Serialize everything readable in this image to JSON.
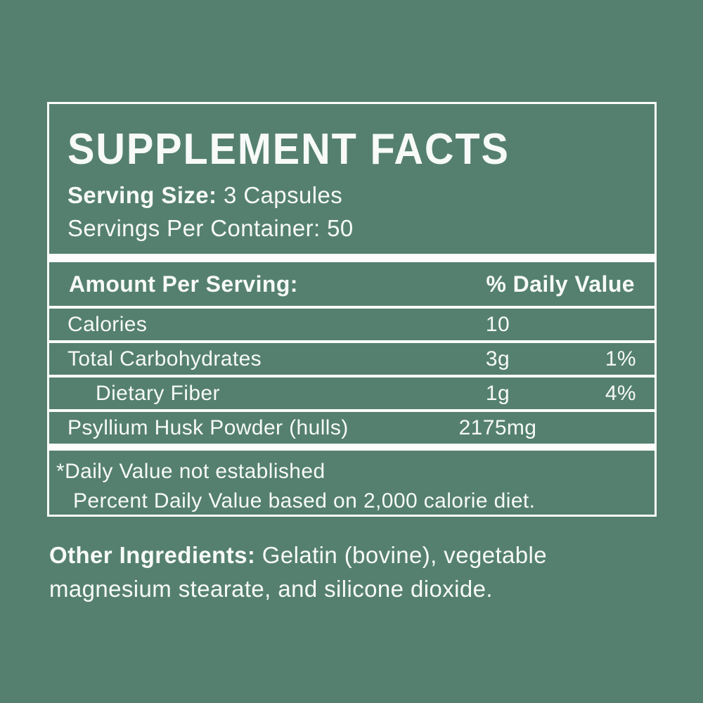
{
  "label": {
    "colors": {
      "background": "#55806F",
      "foreground": "#F7FAF8",
      "rule": "#FCFDFC"
    },
    "header": {
      "title": "SUPPLEMENT FACTS",
      "serving_size_label": "Serving Size:",
      "serving_size_value": " 3 Capsules",
      "servings_per_container": "Servings Per Container: 50"
    },
    "table": {
      "header": {
        "amount_label": "Amount Per Serving:",
        "dv_label": "% Daily Value"
      },
      "rows": [
        {
          "name": "Calories",
          "amount": "10",
          "dv": "",
          "indent": false
        },
        {
          "name": "Total Carbohydrates",
          "amount": "3g",
          "dv": "1%",
          "indent": false
        },
        {
          "name": "Dietary Fiber",
          "amount": "1g",
          "dv": "4%",
          "indent": true
        },
        {
          "name": "Psyllium Husk Powder (hulls)",
          "amount": "2175mg",
          "dv": "",
          "indent": false
        }
      ]
    },
    "footnotes": [
      "*Daily Value not established",
      "Percent Daily Value based on 2,000 calorie diet."
    ],
    "other_ingredients": {
      "label": "Other Ingredients:",
      "text": " Gelatin (bovine), vegetable magnesium stearate, and silicone dioxide."
    }
  }
}
